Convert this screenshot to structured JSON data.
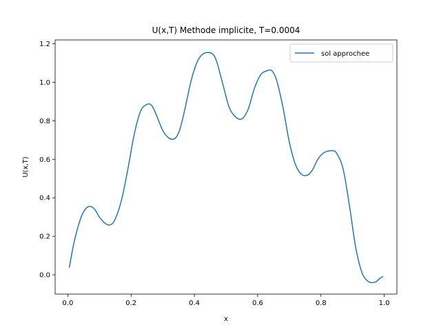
{
  "chart_data": {
    "type": "line",
    "title": "U(x,T) Methode implicite, T=0.0004",
    "xlabel": "x",
    "ylabel": "U(x,T)",
    "xlim": [
      -0.04,
      1.04
    ],
    "ylim": [
      -0.1,
      1.22
    ],
    "xticks": [
      0.0,
      0.2,
      0.4,
      0.6,
      0.8,
      1.0
    ],
    "xtick_labels": [
      "0.0",
      "0.2",
      "0.4",
      "0.6",
      "0.8",
      "1.0"
    ],
    "yticks": [
      0.0,
      0.2,
      0.4,
      0.6,
      0.8,
      1.0,
      1.2
    ],
    "ytick_labels": [
      "0.0",
      "0.2",
      "0.4",
      "0.6",
      "0.8",
      "1.0",
      "1.2"
    ],
    "grid": false,
    "legend_position": "upper right",
    "series": [
      {
        "name": "sol approchee",
        "color": "#1f77b4",
        "x": [
          0.005,
          0.02,
          0.04,
          0.055,
          0.07,
          0.085,
          0.1,
          0.12,
          0.135,
          0.15,
          0.17,
          0.19,
          0.21,
          0.23,
          0.25,
          0.265,
          0.28,
          0.3,
          0.32,
          0.34,
          0.355,
          0.37,
          0.39,
          0.41,
          0.43,
          0.455,
          0.47,
          0.49,
          0.51,
          0.53,
          0.55,
          0.57,
          0.59,
          0.61,
          0.63,
          0.645,
          0.66,
          0.68,
          0.7,
          0.72,
          0.74,
          0.76,
          0.775,
          0.79,
          0.81,
          0.835,
          0.85,
          0.87,
          0.89,
          0.91,
          0.93,
          0.95,
          0.965,
          0.975,
          0.985,
          0.995
        ],
        "y": [
          0.04,
          0.17,
          0.29,
          0.34,
          0.355,
          0.34,
          0.3,
          0.265,
          0.26,
          0.29,
          0.39,
          0.55,
          0.73,
          0.85,
          0.885,
          0.88,
          0.83,
          0.75,
          0.71,
          0.71,
          0.76,
          0.86,
          1.01,
          1.11,
          1.15,
          1.15,
          1.11,
          0.99,
          0.87,
          0.82,
          0.81,
          0.86,
          0.97,
          1.04,
          1.06,
          1.06,
          1.01,
          0.87,
          0.69,
          0.57,
          0.52,
          0.52,
          0.55,
          0.6,
          0.635,
          0.645,
          0.63,
          0.55,
          0.36,
          0.14,
          0.01,
          -0.035,
          -0.04,
          -0.035,
          -0.02,
          -0.01
        ]
      }
    ]
  }
}
